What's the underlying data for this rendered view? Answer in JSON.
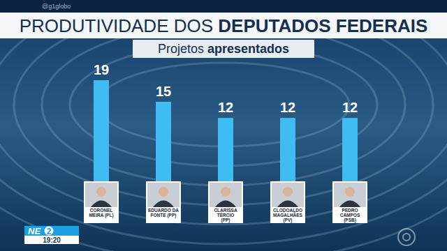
{
  "chart_data": {
    "type": "bar",
    "title": "PRODUTIVIDADE DOS DEPUTADOS FEDERAIS",
    "subtitle": "Projetos apresentados",
    "categories": [
      "CORONEL MEIRA (PL)",
      "EDUARDO DA FONTE (PP)",
      "CLARISSA TÉRCIO (PP)",
      "CLODOALDO MAGALHÃES (PV)",
      "PEDRO CAMPOS (PSB)"
    ],
    "values": [
      19,
      15,
      12,
      12,
      12
    ],
    "color": "#3fbdf2",
    "ylim": [
      0,
      19
    ],
    "data_labels": true,
    "tick_labels": "x",
    "grid": false,
    "annotations": [
      "@g1globo",
      "NE",
      "2",
      "19:20"
    ]
  }
}
